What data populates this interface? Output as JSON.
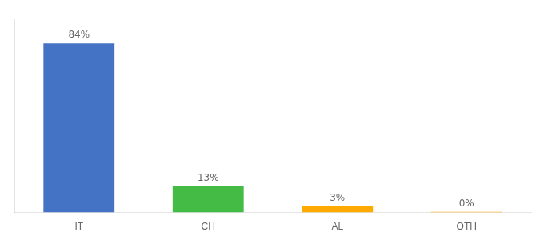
{
  "chart_data": {
    "type": "bar",
    "categories": [
      "IT",
      "CH",
      "AL",
      "OTH"
    ],
    "values": [
      84,
      13,
      3,
      0.3
    ],
    "value_labels": [
      "84%",
      "13%",
      "3%",
      "0%"
    ],
    "colors": [
      "#4472c4",
      "#44bb44",
      "#ffaa00",
      "#ffaa00"
    ],
    "ylim": [
      0,
      96
    ],
    "grid": false,
    "data_labels": true,
    "tick_labels": "x"
  }
}
